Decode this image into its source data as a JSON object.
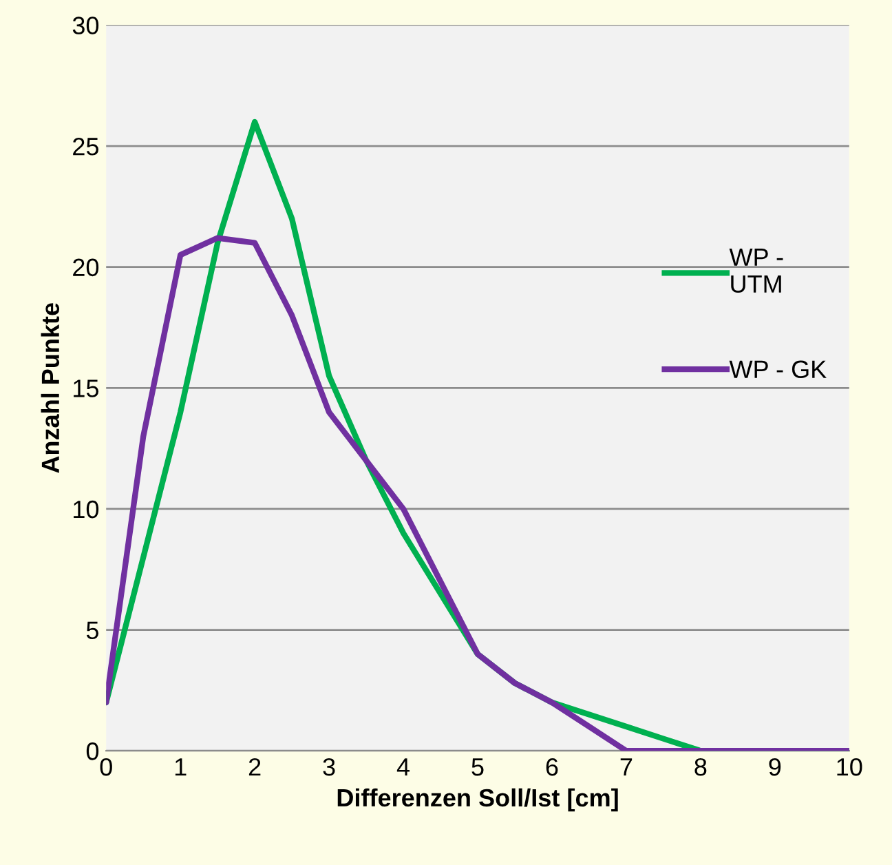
{
  "chart_data": {
    "type": "line",
    "xlabel": "Differenzen Soll/Ist [cm]",
    "ylabel": "Anzahl Punkte",
    "x": [
      0,
      0.5,
      1,
      1.5,
      2,
      2.5,
      3,
      3.5,
      4,
      4.5,
      5,
      5.5,
      6,
      6.5,
      7,
      7.5,
      8,
      9,
      10
    ],
    "series": [
      {
        "name": "WP -\nUTM",
        "color": "#00b050",
        "values": [
          2,
          8,
          14,
          21,
          26,
          22,
          15.5,
          12,
          9,
          6.5,
          4,
          2.8,
          2,
          1.5,
          1,
          0.5,
          0,
          0,
          0
        ]
      },
      {
        "name": "WP - GK",
        "color": "#7030a0",
        "values": [
          2,
          13,
          20.5,
          21.2,
          21,
          18,
          14,
          12,
          10,
          7,
          4,
          2.8,
          2,
          1,
          0,
          0,
          0,
          0,
          0
        ]
      }
    ],
    "xlim": [
      0,
      10
    ],
    "xticks": [
      0,
      1,
      2,
      3,
      4,
      5,
      6,
      7,
      8,
      9,
      10
    ],
    "ylim": [
      0,
      30
    ],
    "yticks": [
      0,
      5,
      10,
      15,
      20,
      25,
      30
    ],
    "grid": "y",
    "legend": "right",
    "marker": "none",
    "line_style": "solid"
  }
}
